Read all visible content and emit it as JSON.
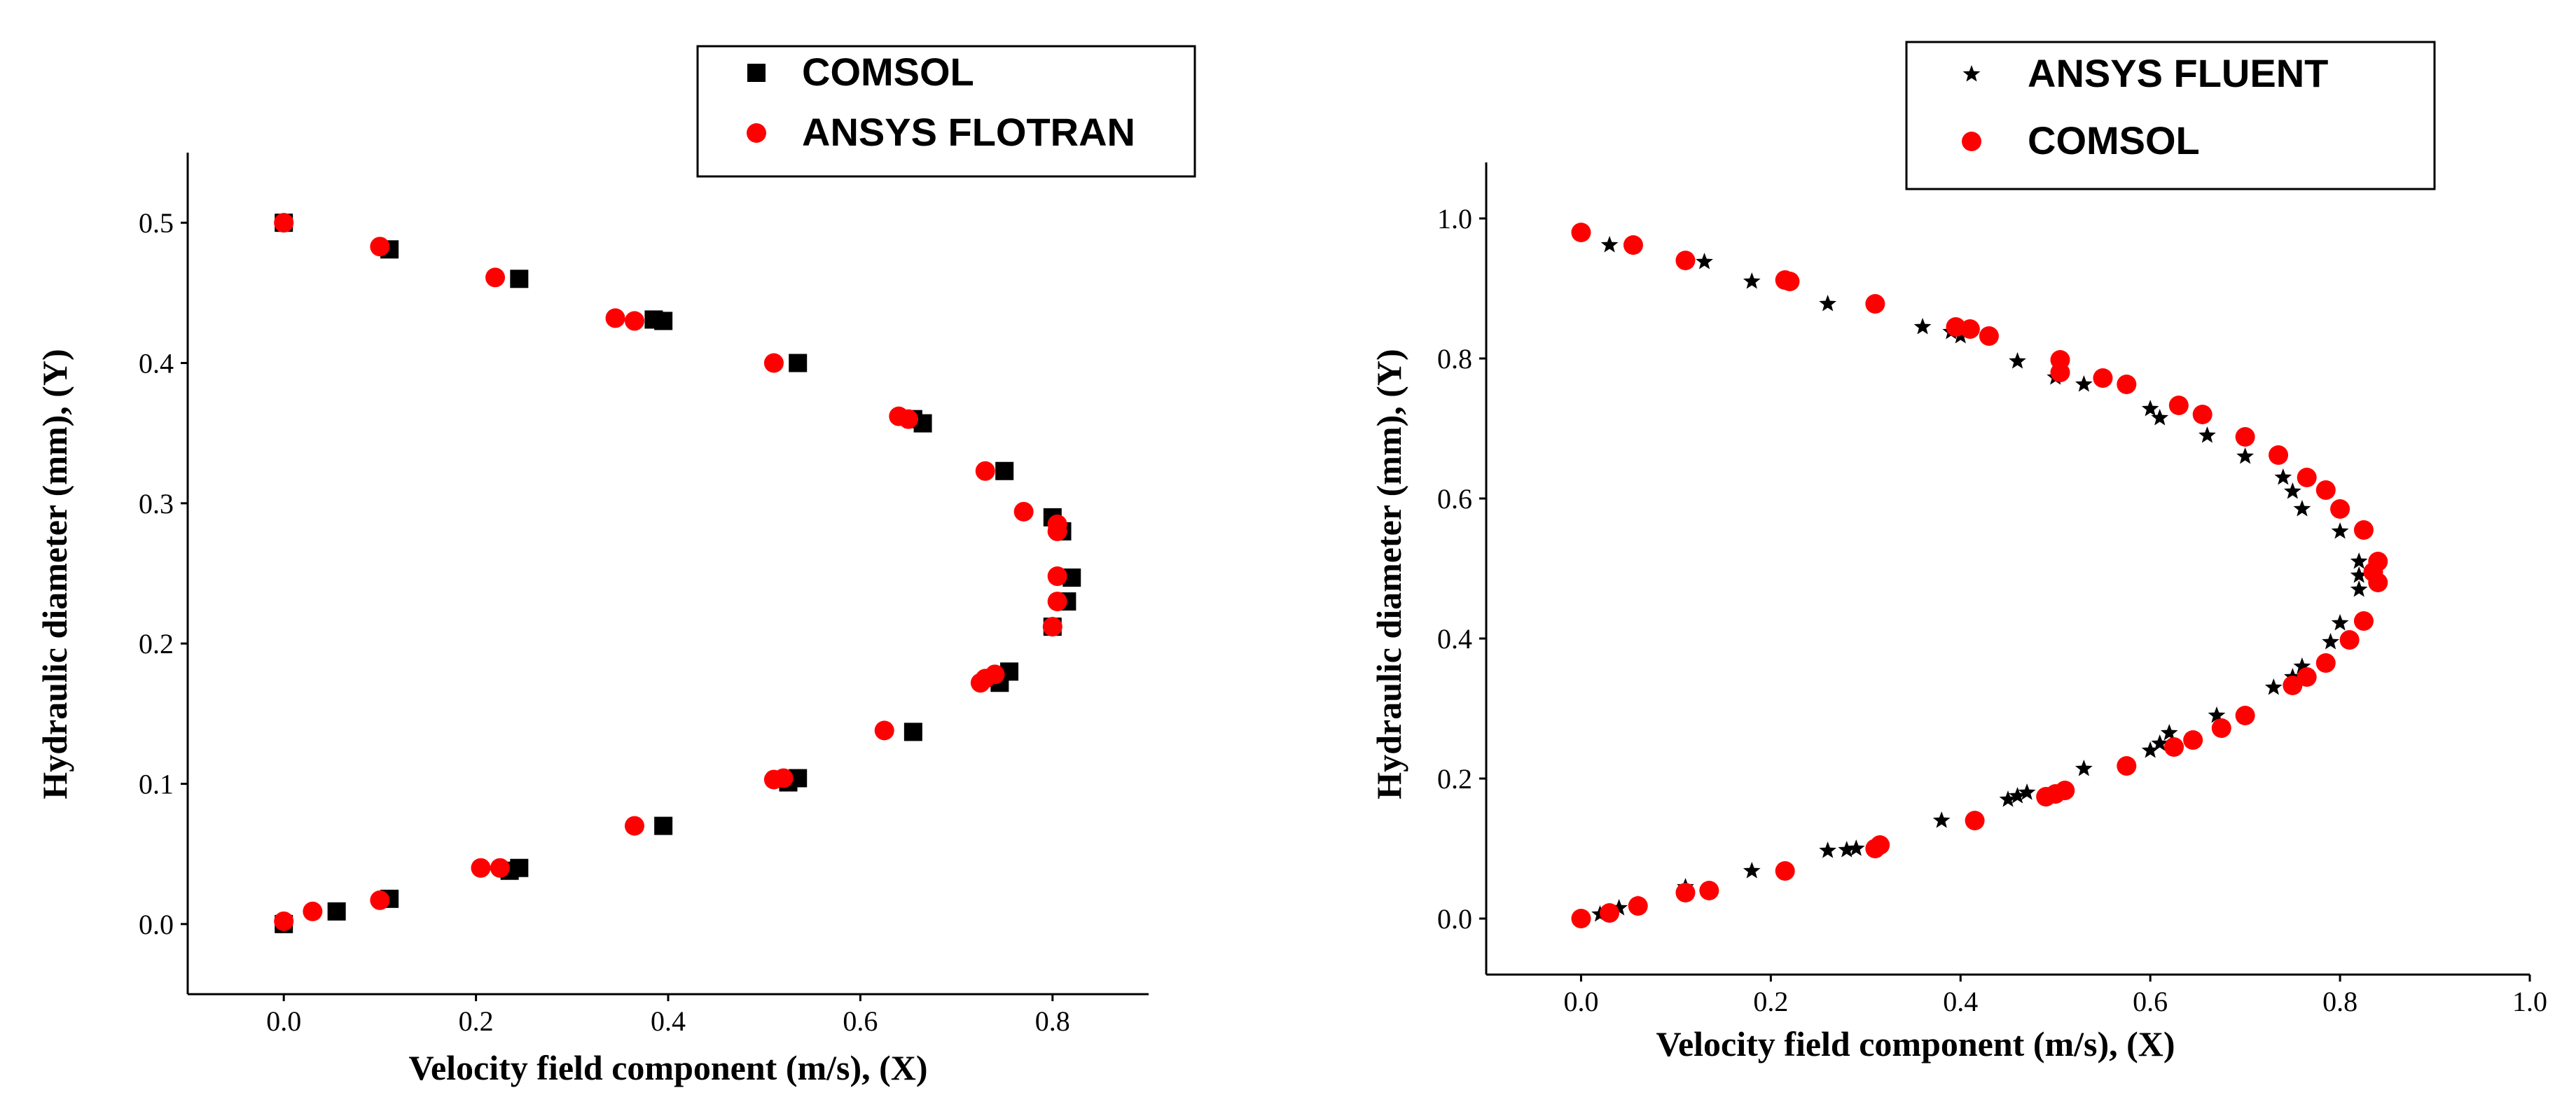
{
  "chart_data": [
    {
      "type": "scatter",
      "title": "",
      "xlabel": "Velocity field component (m/s), (X)",
      "ylabel": "Hydraulic diameter (mm), (Y)",
      "xlim": [
        -0.1,
        0.9
      ],
      "ylim": [
        -0.05,
        0.55
      ],
      "xticks": [
        "0.0",
        "0.2",
        "0.4",
        "0.6",
        "0.8"
      ],
      "xtick_values": [
        0.0,
        0.2,
        0.4,
        0.6,
        0.8
      ],
      "yticks": [
        "0.0",
        "0.1",
        "0.2",
        "0.3",
        "0.4",
        "0.5"
      ],
      "ytick_values": [
        0.0,
        0.1,
        0.2,
        0.3,
        0.4,
        0.5
      ],
      "legend_position": "top-right",
      "series": [
        {
          "name": "COMSOL",
          "marker": "square",
          "color": "#000000",
          "points": [
            [
              0.0,
              0.5
            ],
            [
              0.11,
              0.481
            ],
            [
              0.245,
              0.46
            ],
            [
              0.385,
              0.431
            ],
            [
              0.395,
              0.43
            ],
            [
              0.535,
              0.4
            ],
            [
              0.655,
              0.36
            ],
            [
              0.665,
              0.357
            ],
            [
              0.75,
              0.323
            ],
            [
              0.8,
              0.29
            ],
            [
              0.81,
              0.28
            ],
            [
              0.82,
              0.247
            ],
            [
              0.815,
              0.23
            ],
            [
              0.8,
              0.212
            ],
            [
              0.755,
              0.18
            ],
            [
              0.745,
              0.172
            ],
            [
              0.655,
              0.137
            ],
            [
              0.535,
              0.104
            ],
            [
              0.525,
              0.101
            ],
            [
              0.395,
              0.07
            ],
            [
              0.245,
              0.04
            ],
            [
              0.235,
              0.038
            ],
            [
              0.11,
              0.018
            ],
            [
              0.055,
              0.009
            ],
            [
              0.0,
              0.0
            ]
          ]
        },
        {
          "name": "ANSYS FLOTRAN",
          "marker": "circle",
          "color": "#ff0000",
          "points": [
            [
              0.0,
              0.5
            ],
            [
              0.1,
              0.483
            ],
            [
              0.22,
              0.461
            ],
            [
              0.345,
              0.432
            ],
            [
              0.365,
              0.43
            ],
            [
              0.51,
              0.4
            ],
            [
              0.64,
              0.362
            ],
            [
              0.65,
              0.36
            ],
            [
              0.73,
              0.323
            ],
            [
              0.77,
              0.294
            ],
            [
              0.805,
              0.285
            ],
            [
              0.805,
              0.28
            ],
            [
              0.805,
              0.248
            ],
            [
              0.805,
              0.23
            ],
            [
              0.8,
              0.212
            ],
            [
              0.74,
              0.178
            ],
            [
              0.73,
              0.175
            ],
            [
              0.725,
              0.172
            ],
            [
              0.625,
              0.138
            ],
            [
              0.51,
              0.103
            ],
            [
              0.52,
              0.104
            ],
            [
              0.365,
              0.07
            ],
            [
              0.225,
              0.04
            ],
            [
              0.205,
              0.04
            ],
            [
              0.1,
              0.017
            ],
            [
              0.03,
              0.009
            ],
            [
              0.0,
              0.002
            ]
          ]
        }
      ]
    },
    {
      "type": "scatter",
      "title": "",
      "xlabel": "Velocity field component (m/s), (X)",
      "ylabel": "Hydraulic diameter (mm), (Y)",
      "xlim": [
        -0.1,
        1.0
      ],
      "ylim": [
        -0.08,
        1.08
      ],
      "xticks": [
        "0.0",
        "0.2",
        "0.4",
        "0.6",
        "0.8",
        "1.0"
      ],
      "xtick_values": [
        0.0,
        0.2,
        0.4,
        0.6,
        0.8,
        1.0
      ],
      "yticks": [
        "0.0",
        "0.2",
        "0.4",
        "0.6",
        "0.8",
        "1.0"
      ],
      "ytick_values": [
        0.0,
        0.2,
        0.4,
        0.6,
        0.8,
        1.0
      ],
      "legend_position": "top-right",
      "series": [
        {
          "name": "ANSYS FLUENT",
          "marker": "star",
          "color": "#000000",
          "points": [
            [
              0.03,
              0.962
            ],
            [
              0.13,
              0.938
            ],
            [
              0.18,
              0.91
            ],
            [
              0.26,
              0.878
            ],
            [
              0.36,
              0.845
            ],
            [
              0.39,
              0.838
            ],
            [
              0.4,
              0.832
            ],
            [
              0.46,
              0.796
            ],
            [
              0.5,
              0.773
            ],
            [
              0.53,
              0.763
            ],
            [
              0.6,
              0.728
            ],
            [
              0.61,
              0.715
            ],
            [
              0.66,
              0.69
            ],
            [
              0.7,
              0.66
            ],
            [
              0.74,
              0.63
            ],
            [
              0.75,
              0.61
            ],
            [
              0.76,
              0.585
            ],
            [
              0.8,
              0.553
            ],
            [
              0.82,
              0.51
            ],
            [
              0.82,
              0.49
            ],
            [
              0.82,
              0.47
            ],
            [
              0.8,
              0.422
            ],
            [
              0.79,
              0.395
            ],
            [
              0.76,
              0.36
            ],
            [
              0.75,
              0.345
            ],
            [
              0.73,
              0.33
            ],
            [
              0.67,
              0.29
            ],
            [
              0.62,
              0.265
            ],
            [
              0.61,
              0.25
            ],
            [
              0.6,
              0.24
            ],
            [
              0.53,
              0.214
            ],
            [
              0.47,
              0.18
            ],
            [
              0.46,
              0.175
            ],
            [
              0.45,
              0.17
            ],
            [
              0.38,
              0.14
            ],
            [
              0.29,
              0.1
            ],
            [
              0.28,
              0.098
            ],
            [
              0.26,
              0.097
            ],
            [
              0.18,
              0.068
            ],
            [
              0.11,
              0.045
            ],
            [
              0.06,
              0.02
            ],
            [
              0.04,
              0.015
            ],
            [
              0.02,
              0.006
            ]
          ]
        },
        {
          "name": "COMSOL",
          "marker": "circle",
          "color": "#ff0000",
          "points": [
            [
              0.0,
              0.98
            ],
            [
              0.055,
              0.962
            ],
            [
              0.11,
              0.94
            ],
            [
              0.215,
              0.912
            ],
            [
              0.22,
              0.91
            ],
            [
              0.31,
              0.878
            ],
            [
              0.395,
              0.845
            ],
            [
              0.41,
              0.842
            ],
            [
              0.43,
              0.832
            ],
            [
              0.505,
              0.798
            ],
            [
              0.505,
              0.78
            ],
            [
              0.55,
              0.772
            ],
            [
              0.575,
              0.763
            ],
            [
              0.63,
              0.733
            ],
            [
              0.655,
              0.72
            ],
            [
              0.7,
              0.688
            ],
            [
              0.735,
              0.662
            ],
            [
              0.765,
              0.63
            ],
            [
              0.785,
              0.612
            ],
            [
              0.8,
              0.585
            ],
            [
              0.825,
              0.555
            ],
            [
              0.84,
              0.51
            ],
            [
              0.835,
              0.495
            ],
            [
              0.84,
              0.48
            ],
            [
              0.825,
              0.425
            ],
            [
              0.81,
              0.398
            ],
            [
              0.785,
              0.365
            ],
            [
              0.765,
              0.345
            ],
            [
              0.75,
              0.333
            ],
            [
              0.7,
              0.29
            ],
            [
              0.675,
              0.272
            ],
            [
              0.645,
              0.255
            ],
            [
              0.625,
              0.245
            ],
            [
              0.575,
              0.218
            ],
            [
              0.51,
              0.183
            ],
            [
              0.5,
              0.178
            ],
            [
              0.49,
              0.174
            ],
            [
              0.415,
              0.14
            ],
            [
              0.315,
              0.105
            ],
            [
              0.31,
              0.1
            ],
            [
              0.215,
              0.068
            ],
            [
              0.135,
              0.04
            ],
            [
              0.11,
              0.037
            ],
            [
              0.06,
              0.018
            ],
            [
              0.03,
              0.008
            ],
            [
              0.0,
              0.0
            ]
          ]
        }
      ]
    }
  ]
}
